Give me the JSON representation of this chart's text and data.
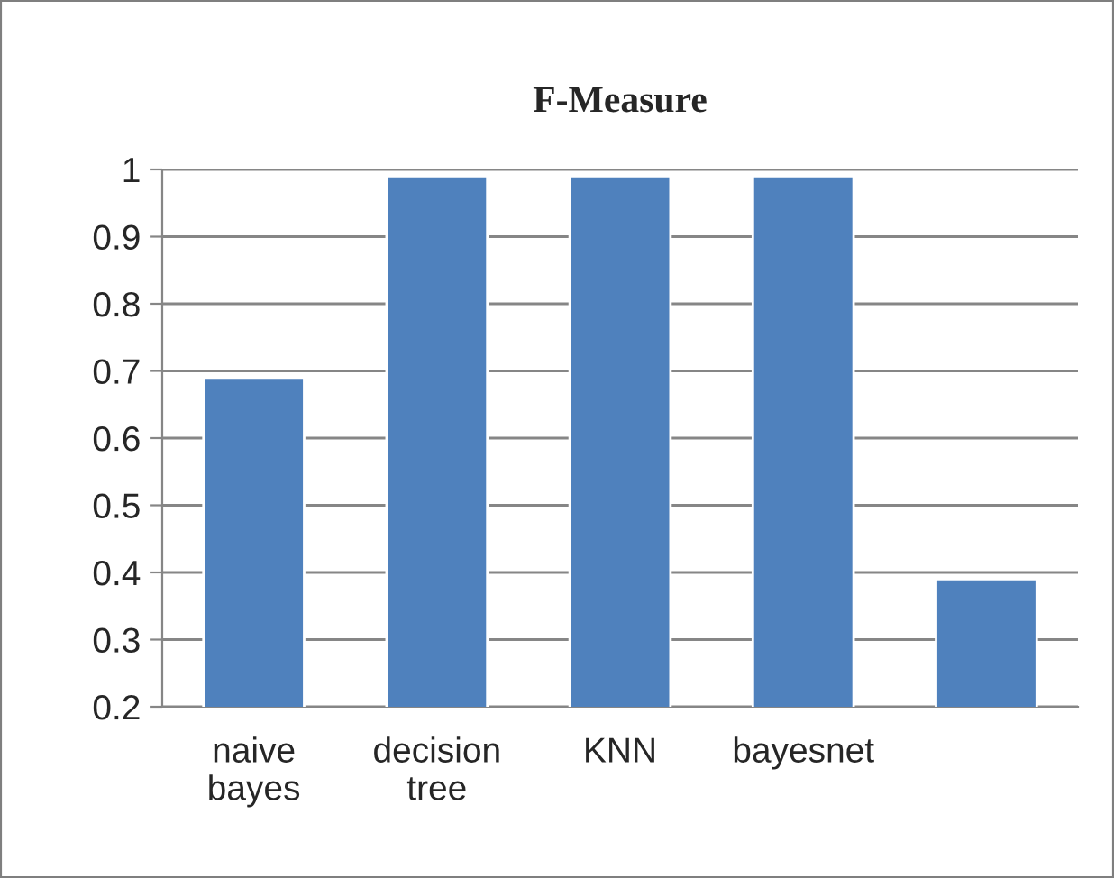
{
  "chart_data": {
    "type": "bar",
    "title": "F-Measure",
    "categories": [
      "naive\nbayes",
      "decision\ntree",
      "KNN",
      "bayesnet",
      null
    ],
    "values": [
      0.69,
      0.99,
      0.99,
      0.99,
      0.39
    ],
    "color": "#4f81bd",
    "ylim": [
      0.2,
      1
    ],
    "yticks": [
      0.2,
      0.3,
      0.4,
      0.5,
      0.6,
      0.7,
      0.8,
      0.9,
      1
    ],
    "grid": "y",
    "legend": false
  }
}
